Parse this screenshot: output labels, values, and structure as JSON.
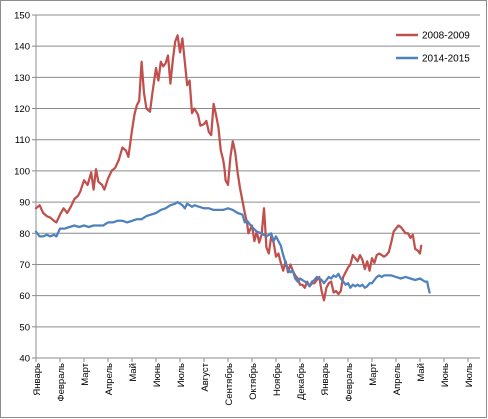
{
  "chart_data": {
    "type": "line",
    "title": "",
    "xlabel": "",
    "ylabel": "",
    "ylim": [
      40,
      150
    ],
    "yticks": [
      40,
      50,
      60,
      70,
      80,
      90,
      100,
      110,
      120,
      130,
      140,
      150
    ],
    "grid": "horizontal",
    "legend_position": "top-right",
    "categories": [
      "Январь",
      "Февраль",
      "Март",
      "Апрель",
      "Май",
      "Июнь",
      "Июль",
      "Август",
      "Сентябрь",
      "Октябрь",
      "Ноябрь",
      "Декабрь",
      "Январь",
      "Февраль",
      "Март",
      "Апрель",
      "Май",
      "Июнь",
      "Июль"
    ],
    "x_range_months": [
      0,
      18.5
    ],
    "series": [
      {
        "name": "2008-2009",
        "color": "#c0504d",
        "points": [
          [
            0.0,
            88
          ],
          [
            0.15,
            89
          ],
          [
            0.3,
            86.5
          ],
          [
            0.45,
            85.5
          ],
          [
            0.6,
            85
          ],
          [
            0.75,
            84
          ],
          [
            0.85,
            83.5
          ],
          [
            1.0,
            86
          ],
          [
            1.15,
            88
          ],
          [
            1.3,
            86.5
          ],
          [
            1.45,
            88.5
          ],
          [
            1.6,
            91
          ],
          [
            1.75,
            92
          ],
          [
            1.85,
            93.5
          ],
          [
            2.0,
            97
          ],
          [
            2.15,
            95.5
          ],
          [
            2.3,
            99.5
          ],
          [
            2.4,
            94
          ],
          [
            2.5,
            100.5
          ],
          [
            2.6,
            96.5
          ],
          [
            2.75,
            95.5
          ],
          [
            2.85,
            94
          ],
          [
            3.0,
            97.5
          ],
          [
            3.15,
            100
          ],
          [
            3.3,
            101
          ],
          [
            3.45,
            103.5
          ],
          [
            3.6,
            107.5
          ],
          [
            3.75,
            106.5
          ],
          [
            3.85,
            104.5
          ],
          [
            4.0,
            113
          ],
          [
            4.1,
            118
          ],
          [
            4.2,
            121
          ],
          [
            4.3,
            122.5
          ],
          [
            4.4,
            135
          ],
          [
            4.5,
            125
          ],
          [
            4.6,
            120
          ],
          [
            4.75,
            119
          ],
          [
            4.85,
            125
          ],
          [
            5.0,
            133
          ],
          [
            5.1,
            129
          ],
          [
            5.2,
            135
          ],
          [
            5.3,
            133.5
          ],
          [
            5.4,
            134.5
          ],
          [
            5.5,
            137
          ],
          [
            5.6,
            128
          ],
          [
            5.7,
            135.5
          ],
          [
            5.8,
            141.5
          ],
          [
            5.9,
            143.5
          ],
          [
            6.0,
            138
          ],
          [
            6.1,
            142.5
          ],
          [
            6.2,
            135
          ],
          [
            6.3,
            127.5
          ],
          [
            6.4,
            129
          ],
          [
            6.5,
            118.5
          ],
          [
            6.6,
            120
          ],
          [
            6.75,
            118
          ],
          [
            6.85,
            114.5
          ],
          [
            7.0,
            115
          ],
          [
            7.1,
            116
          ],
          [
            7.2,
            112.5
          ],
          [
            7.3,
            111.5
          ],
          [
            7.4,
            121.5
          ],
          [
            7.5,
            118
          ],
          [
            7.6,
            114
          ],
          [
            7.7,
            106.5
          ],
          [
            7.8,
            103.5
          ],
          [
            7.85,
            101
          ],
          [
            7.9,
            97
          ],
          [
            8.0,
            95.5
          ],
          [
            8.1,
            104.5
          ],
          [
            8.2,
            109.5
          ],
          [
            8.3,
            106
          ],
          [
            8.4,
            99.5
          ],
          [
            8.5,
            94.5
          ],
          [
            8.6,
            90.5
          ],
          [
            8.7,
            86.5
          ],
          [
            8.8,
            83
          ],
          [
            8.85,
            80
          ],
          [
            9.0,
            82.5
          ],
          [
            9.1,
            77.5
          ],
          [
            9.2,
            80.5
          ],
          [
            9.3,
            77
          ],
          [
            9.4,
            79.5
          ],
          [
            9.5,
            88
          ],
          [
            9.55,
            82
          ],
          [
            9.6,
            75.5
          ],
          [
            9.7,
            73.5
          ],
          [
            9.8,
            79
          ],
          [
            9.9,
            77
          ],
          [
            10.0,
            72.5
          ],
          [
            10.1,
            73.5
          ],
          [
            10.2,
            70.5
          ],
          [
            10.3,
            68
          ],
          [
            10.4,
            71
          ],
          [
            10.5,
            67.5
          ],
          [
            10.6,
            70
          ],
          [
            10.7,
            68
          ],
          [
            10.8,
            66.5
          ],
          [
            10.9,
            65.5
          ],
          [
            11.0,
            63.5
          ],
          [
            11.1,
            63.5
          ],
          [
            11.2,
            62.5
          ],
          [
            11.3,
            64.5
          ],
          [
            11.4,
            63
          ],
          [
            11.5,
            64
          ],
          [
            11.6,
            64
          ],
          [
            11.7,
            65
          ],
          [
            11.8,
            66
          ],
          [
            11.9,
            61.5
          ],
          [
            12.0,
            58.5
          ],
          [
            12.1,
            62.5
          ],
          [
            12.2,
            64
          ],
          [
            12.3,
            64.5
          ],
          [
            12.4,
            61
          ],
          [
            12.5,
            61.5
          ],
          [
            12.6,
            60.5
          ],
          [
            12.7,
            61.5
          ],
          [
            12.75,
            64
          ],
          [
            12.8,
            66
          ],
          [
            12.9,
            67.5
          ],
          [
            13.0,
            69
          ],
          [
            13.1,
            70
          ],
          [
            13.2,
            73
          ],
          [
            13.3,
            72
          ],
          [
            13.4,
            71
          ],
          [
            13.5,
            73
          ],
          [
            13.6,
            71.5
          ],
          [
            13.7,
            68.5
          ],
          [
            13.8,
            71
          ],
          [
            13.9,
            68
          ],
          [
            14.0,
            72
          ],
          [
            14.1,
            70.5
          ],
          [
            14.2,
            73
          ],
          [
            14.3,
            73.5
          ],
          [
            14.4,
            73
          ],
          [
            14.5,
            72.5
          ],
          [
            14.6,
            73
          ],
          [
            14.7,
            74
          ],
          [
            14.8,
            77
          ],
          [
            14.9,
            80.5
          ],
          [
            15.0,
            81.5
          ],
          [
            15.1,
            82.5
          ],
          [
            15.2,
            82
          ],
          [
            15.3,
            81
          ],
          [
            15.4,
            80
          ],
          [
            15.5,
            80
          ],
          [
            15.6,
            78.5
          ],
          [
            15.7,
            79.5
          ],
          [
            15.8,
            75
          ],
          [
            15.9,
            74.5
          ],
          [
            16.0,
            73.5
          ],
          [
            16.05,
            76
          ]
        ]
      },
      {
        "name": "2014-2015",
        "color": "#4f81bd",
        "points": [
          [
            0.0,
            80.5
          ],
          [
            0.15,
            79
          ],
          [
            0.3,
            79
          ],
          [
            0.45,
            79.5
          ],
          [
            0.6,
            79
          ],
          [
            0.75,
            79.5
          ],
          [
            0.85,
            79
          ],
          [
            1.0,
            81.5
          ],
          [
            1.2,
            81.5
          ],
          [
            1.4,
            82
          ],
          [
            1.6,
            82.5
          ],
          [
            1.8,
            82
          ],
          [
            2.0,
            82.5
          ],
          [
            2.2,
            82
          ],
          [
            2.4,
            82.5
          ],
          [
            2.6,
            82.5
          ],
          [
            2.8,
            82.5
          ],
          [
            3.0,
            83.5
          ],
          [
            3.2,
            83.5
          ],
          [
            3.4,
            84
          ],
          [
            3.6,
            84
          ],
          [
            3.8,
            83.5
          ],
          [
            4.0,
            84
          ],
          [
            4.2,
            84.5
          ],
          [
            4.4,
            84.5
          ],
          [
            4.6,
            85.5
          ],
          [
            4.8,
            86
          ],
          [
            5.0,
            86.5
          ],
          [
            5.2,
            87.5
          ],
          [
            5.4,
            88
          ],
          [
            5.6,
            89
          ],
          [
            5.8,
            89.5
          ],
          [
            5.9,
            90
          ],
          [
            6.0,
            89.5
          ],
          [
            6.1,
            89
          ],
          [
            6.2,
            88
          ],
          [
            6.3,
            89.5
          ],
          [
            6.4,
            89
          ],
          [
            6.5,
            88.5
          ],
          [
            6.6,
            89
          ],
          [
            6.8,
            88.5
          ],
          [
            7.0,
            88
          ],
          [
            7.2,
            88
          ],
          [
            7.4,
            87.5
          ],
          [
            7.6,
            87.5
          ],
          [
            7.8,
            87.5
          ],
          [
            8.0,
            88
          ],
          [
            8.2,
            87.5
          ],
          [
            8.4,
            86.5
          ],
          [
            8.6,
            86
          ],
          [
            8.7,
            83.5
          ],
          [
            8.8,
            84
          ],
          [
            8.9,
            83
          ],
          [
            9.0,
            82
          ],
          [
            9.2,
            80.5
          ],
          [
            9.4,
            80
          ],
          [
            9.6,
            79
          ],
          [
            9.8,
            80
          ],
          [
            9.9,
            77.5
          ],
          [
            10.0,
            79
          ],
          [
            10.1,
            77.5
          ],
          [
            10.2,
            76
          ],
          [
            10.3,
            73
          ],
          [
            10.4,
            70.5
          ],
          [
            10.5,
            68.5
          ],
          [
            10.6,
            67.5
          ],
          [
            10.7,
            68
          ],
          [
            10.8,
            65.5
          ],
          [
            10.9,
            64.5
          ],
          [
            11.0,
            65.5
          ],
          [
            11.1,
            65
          ],
          [
            11.2,
            64.5
          ],
          [
            11.3,
            64
          ],
          [
            11.4,
            63
          ],
          [
            11.5,
            64.5
          ],
          [
            11.6,
            65
          ],
          [
            11.7,
            66
          ],
          [
            11.8,
            65.5
          ],
          [
            11.9,
            65
          ],
          [
            12.0,
            64
          ],
          [
            12.1,
            65
          ],
          [
            12.2,
            66
          ],
          [
            12.3,
            65.5
          ],
          [
            12.4,
            66.5
          ],
          [
            12.5,
            66
          ],
          [
            12.6,
            67
          ],
          [
            12.7,
            65.5
          ],
          [
            12.8,
            64.5
          ],
          [
            12.9,
            63.5
          ],
          [
            13.0,
            64
          ],
          [
            13.1,
            62.5
          ],
          [
            13.2,
            63.5
          ],
          [
            13.3,
            63
          ],
          [
            13.4,
            63.5
          ],
          [
            13.5,
            63
          ],
          [
            13.6,
            63.5
          ],
          [
            13.7,
            62.5
          ],
          [
            13.8,
            63
          ],
          [
            13.9,
            64
          ],
          [
            14.0,
            64
          ],
          [
            14.1,
            65
          ],
          [
            14.2,
            66
          ],
          [
            14.3,
            66.5
          ],
          [
            14.4,
            66
          ],
          [
            14.5,
            66.5
          ],
          [
            14.6,
            66.5
          ],
          [
            14.8,
            66.5
          ],
          [
            15.0,
            66
          ],
          [
            15.2,
            65.5
          ],
          [
            15.4,
            66
          ],
          [
            15.6,
            65.5
          ],
          [
            15.8,
            65
          ],
          [
            16.0,
            65.5
          ],
          [
            16.1,
            65
          ],
          [
            16.2,
            64.5
          ],
          [
            16.3,
            64.5
          ],
          [
            16.35,
            62.5
          ],
          [
            16.4,
            61
          ]
        ]
      }
    ]
  }
}
